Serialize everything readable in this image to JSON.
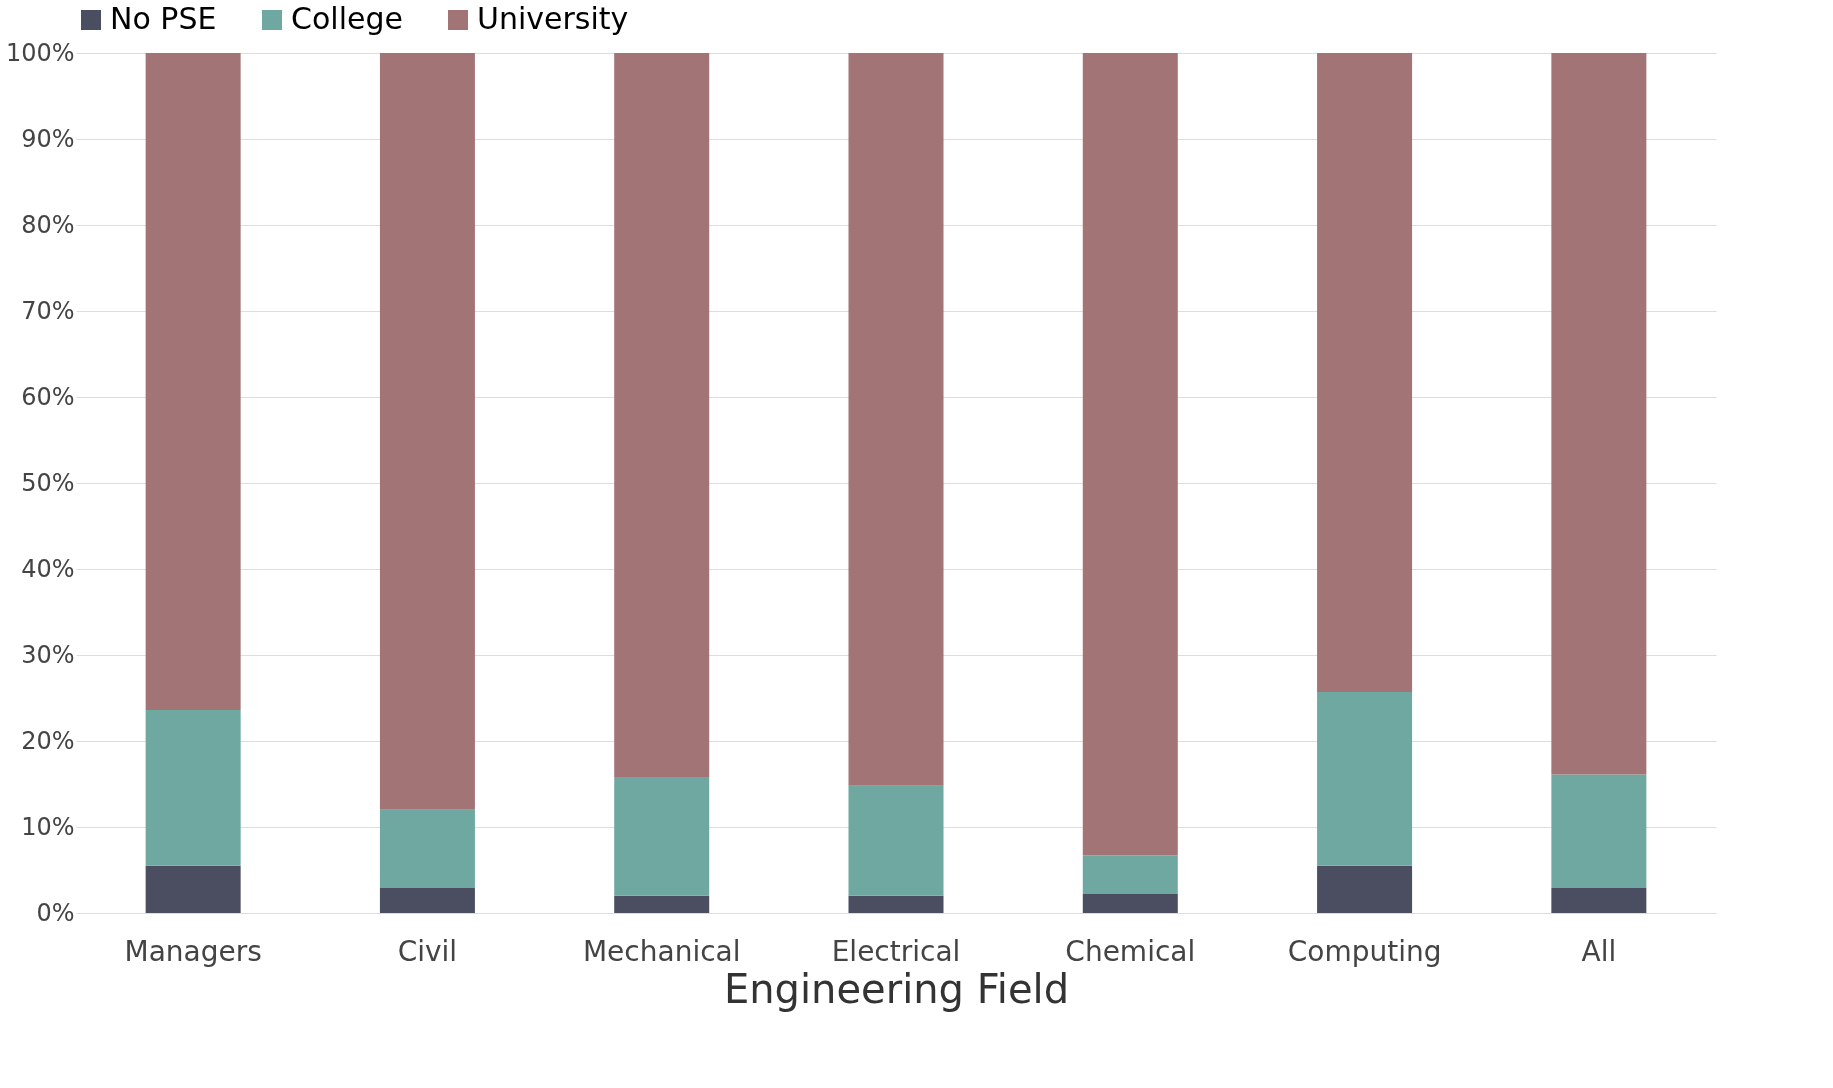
{
  "chart_data": {
    "type": "bar",
    "stacked": true,
    "xlabel": "Engineering Field",
    "categories": [
      "Managers",
      "Civil",
      "Mechanical",
      "Electrical",
      "Chemical",
      "Computing",
      "All"
    ],
    "series": [
      {
        "name": "No PSE",
        "color": "#4a4e60",
        "values": [
          5.5,
          2.9,
          2.0,
          2.0,
          2.2,
          5.5,
          2.9
        ]
      },
      {
        "name": "College",
        "color": "#6fa8a0",
        "values": [
          18.1,
          9.1,
          13.8,
          12.8,
          4.5,
          20.2,
          13.2
        ]
      },
      {
        "name": "University",
        "color": "#a27476",
        "values": [
          76.4,
          88.0,
          84.2,
          85.2,
          93.3,
          74.3,
          83.9
        ]
      }
    ],
    "ylim": [
      0,
      100
    ],
    "yticks": [
      {
        "value": 0,
        "label": "0%"
      },
      {
        "value": 10,
        "label": "10%"
      },
      {
        "value": 20,
        "label": "20%"
      },
      {
        "value": 30,
        "label": "30%"
      },
      {
        "value": 40,
        "label": "40%"
      },
      {
        "value": 50,
        "label": "50%"
      },
      {
        "value": 60,
        "label": "60%"
      },
      {
        "value": 70,
        "label": "70%"
      },
      {
        "value": 80,
        "label": "80%"
      },
      {
        "value": 90,
        "label": "90%"
      },
      {
        "value": 100,
        "label": "100%"
      }
    ],
    "grid": "y",
    "legend": "top"
  }
}
